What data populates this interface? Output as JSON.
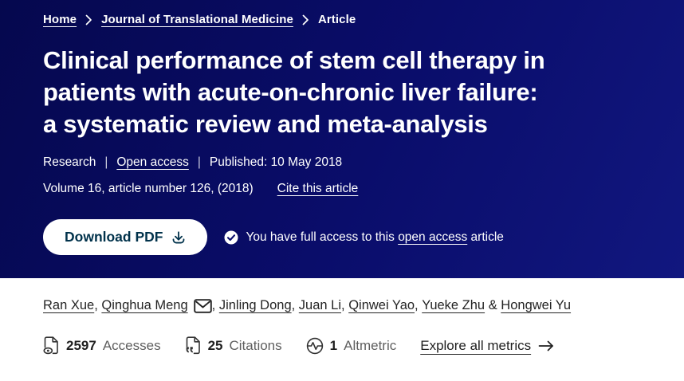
{
  "breadcrumb": {
    "items": [
      {
        "label": "Home",
        "link": true
      },
      {
        "label": "Journal of Translational Medicine",
        "link": true
      },
      {
        "label": "Article",
        "link": false
      }
    ]
  },
  "header": {
    "title_lines": [
      "Clinical performance of stem cell therapy in",
      "patients with acute-on-chronic liver failure:",
      "a systematic review and meta-analysis"
    ],
    "article_type": "Research",
    "access_type": "Open access",
    "published": "Published: 10 May 2018",
    "volume_info": "Volume 16, article number 126, (2018)",
    "cite_link": "Cite this article",
    "separator": "|"
  },
  "actions": {
    "download_label": "Download PDF",
    "access_note_prefix": "You have full access to this",
    "access_note_link": "open access",
    "access_note_suffix": "article"
  },
  "authors": {
    "names": [
      "Ran Xue",
      "Qinghua Meng",
      "Jinling Dong",
      "Juan Li",
      "Qinwei Yao",
      "Yueke Zhu",
      "Hongwei Yu"
    ],
    "corresponding_index": 1,
    "comma_separator": ", ",
    "last_separator": " & "
  },
  "metrics": {
    "items": [
      {
        "icon": "accesses-icon",
        "value": "2597",
        "label": "Accesses"
      },
      {
        "icon": "citations-icon",
        "value": "25",
        "label": "Citations"
      },
      {
        "icon": "altmetric-icon",
        "value": "1",
        "label": "Altmetric"
      }
    ],
    "explore_link": "Explore all metrics"
  },
  "colors": {
    "header_bg_start": "#05084e",
    "header_bg_mid": "#0a0d6b",
    "header_bg_end": "#11177f",
    "button_text": "#01324b",
    "text_dark": "#1f1f1f",
    "text_gray": "#5f5f5f"
  }
}
